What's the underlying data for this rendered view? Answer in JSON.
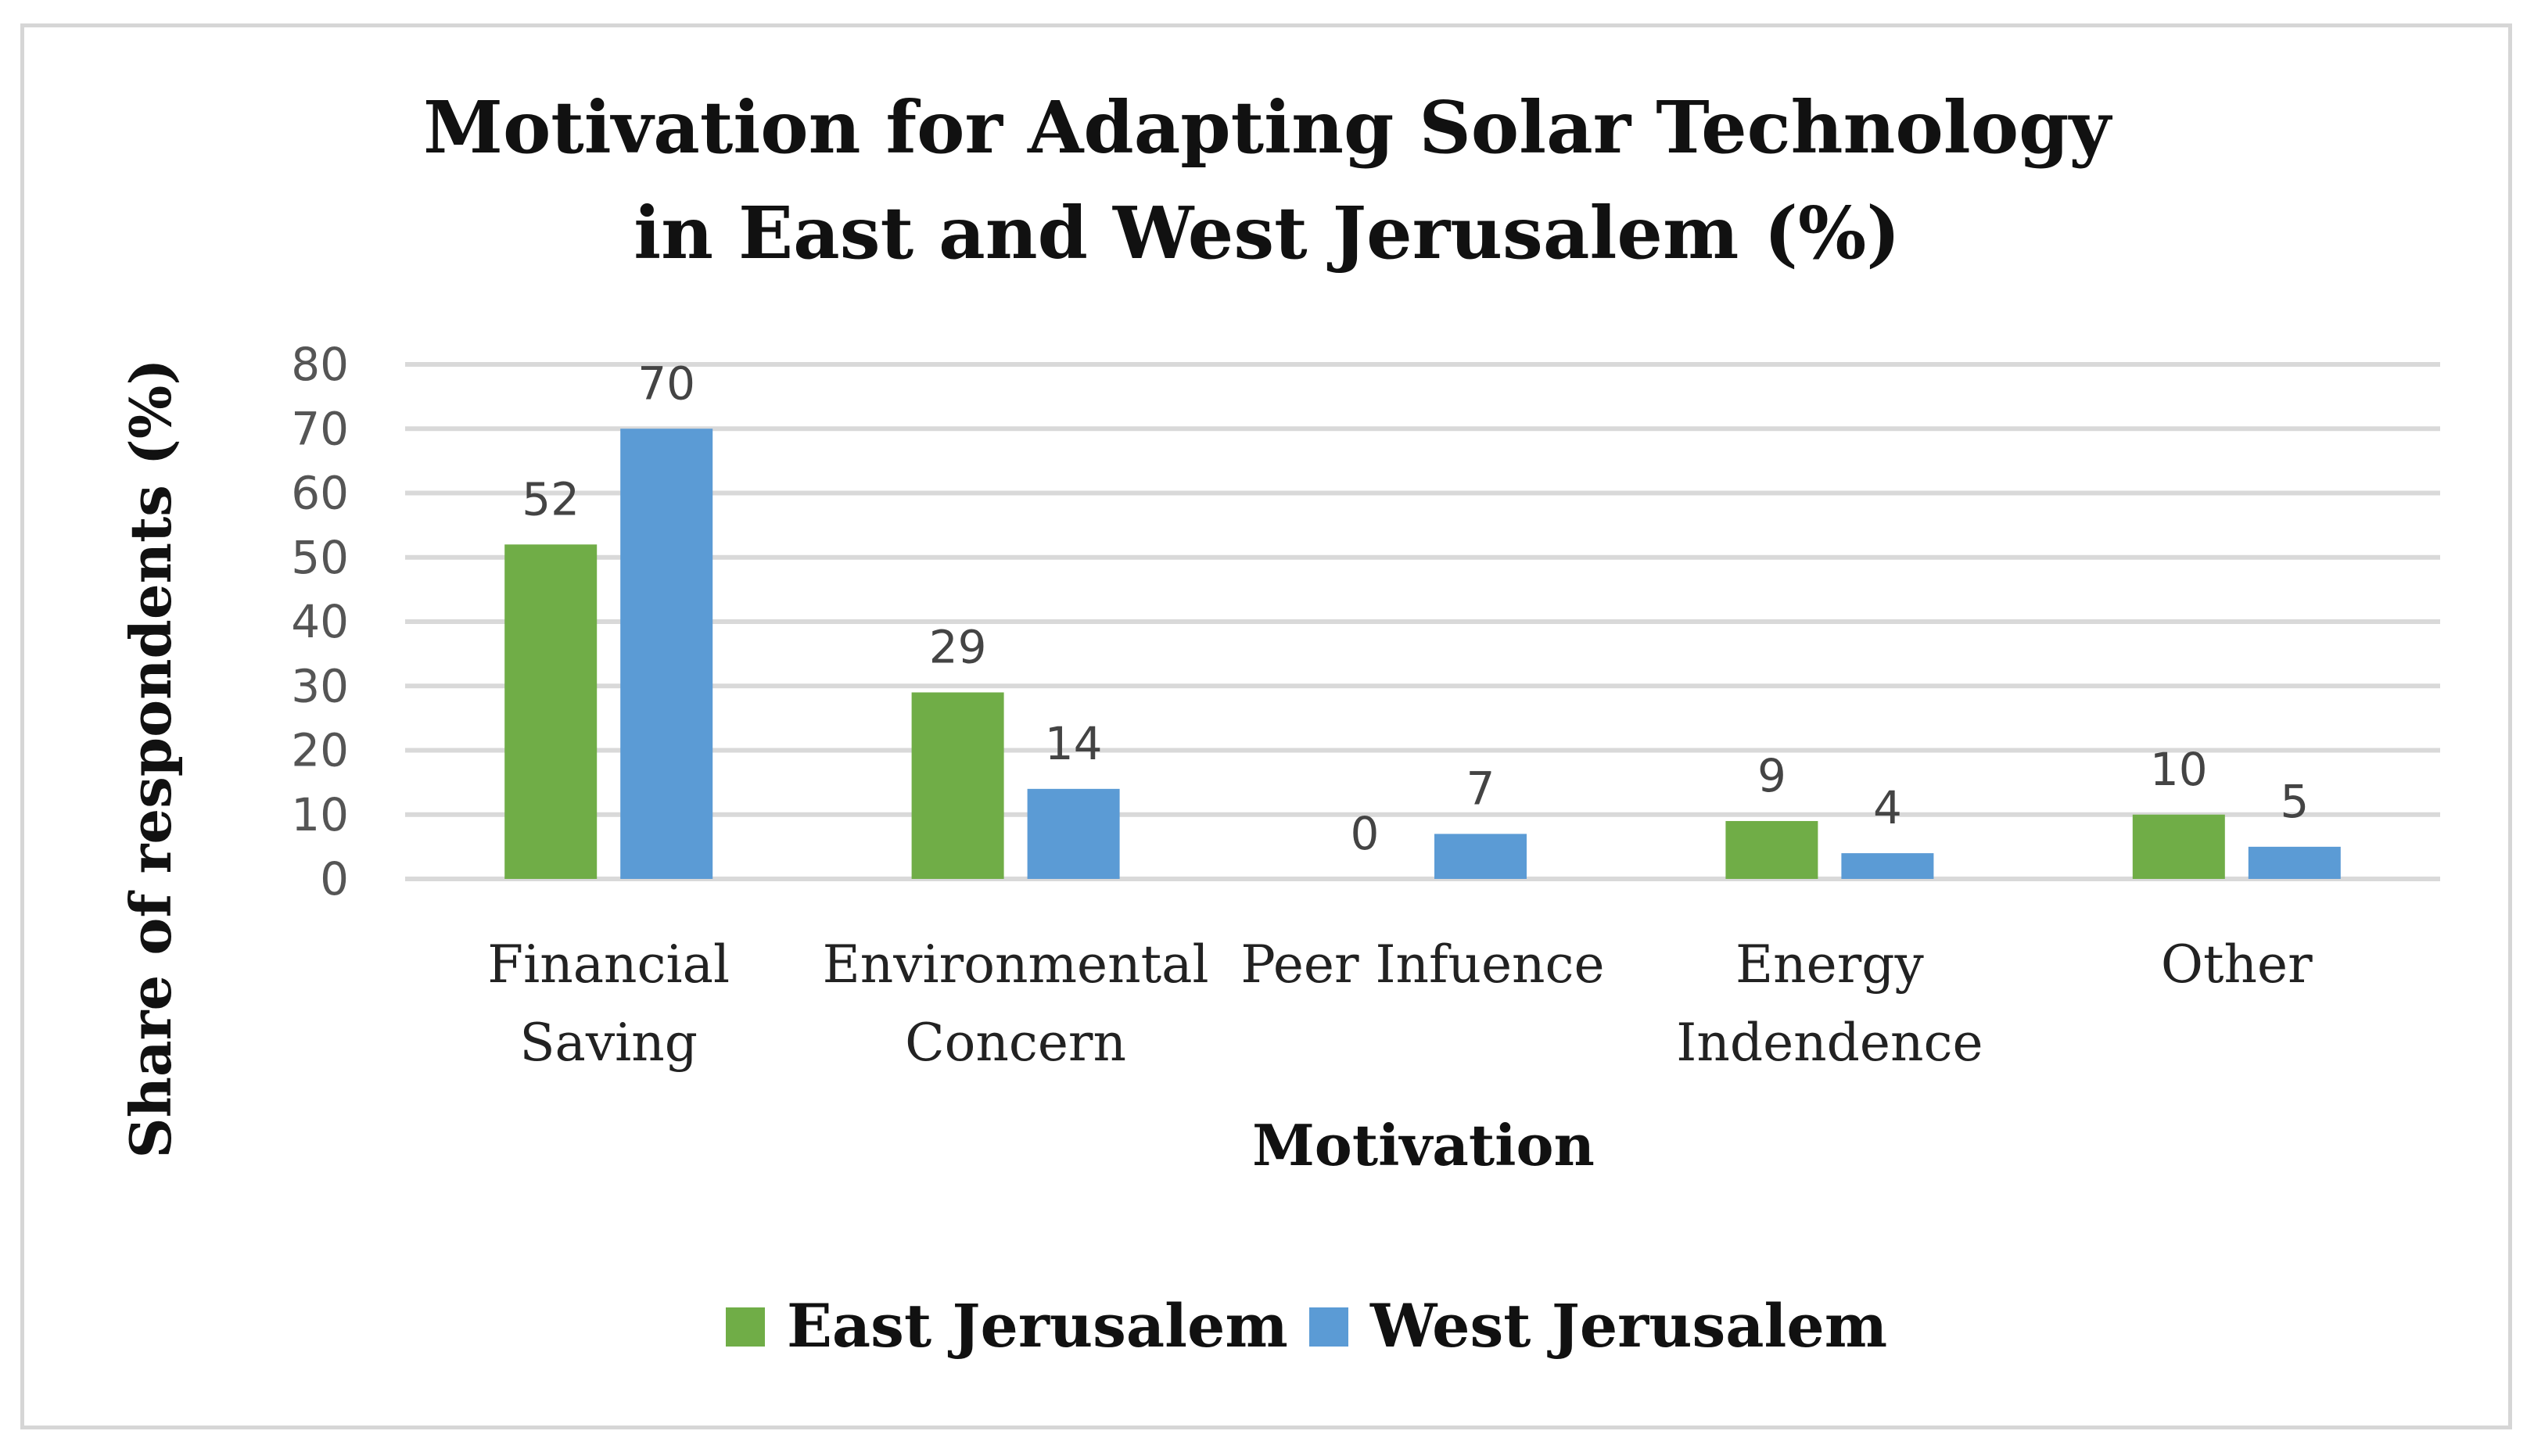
{
  "chart_data": {
    "type": "bar",
    "title": [
      "Motivation for Adapting Solar Technology",
      "in East and West Jerusalem (%)"
    ],
    "xlabel": "Motivation",
    "ylabel": "Share of respondents (%)",
    "ylim": [
      0,
      80
    ],
    "yticks": [
      "0",
      "10",
      "20",
      "30",
      "40",
      "50",
      "60",
      "70",
      "80"
    ],
    "grid": true,
    "legend_position": "bottom",
    "categories": [
      [
        "Financial",
        "Saving"
      ],
      [
        "Environmental",
        "Concern"
      ],
      [
        "Peer Infuence"
      ],
      [
        "Energy",
        "Indendence"
      ],
      [
        "Other"
      ]
    ],
    "series": [
      {
        "name": "East Jerusalem",
        "color": "#70ad47",
        "values": [
          52,
          29,
          0,
          9,
          10
        ]
      },
      {
        "name": "West Jerusalem",
        "color": "#5b9bd5",
        "values": [
          70,
          14,
          7,
          4,
          5
        ]
      }
    ]
  }
}
